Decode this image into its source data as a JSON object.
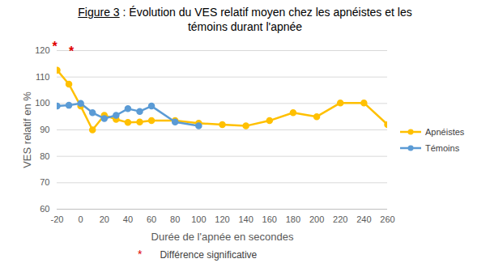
{
  "chart_data": {
    "type": "line",
    "title": "Figure 3 : Évolution du VES relatif moyen chez les apnéistes et les témoins durant l'apnée",
    "x_label": "Durée de l'apnée en secondes",
    "y_label": "VES relatif en %",
    "x": [
      -20,
      -10,
      0,
      10,
      20,
      30,
      40,
      50,
      60,
      80,
      100,
      120,
      140,
      160,
      180,
      200,
      220,
      240,
      260
    ],
    "series": [
      {
        "name": "Apnéistes",
        "color": "#FFC000",
        "marker": "circle",
        "line_style": "solid",
        "values": [
          112.6,
          107.3,
          99,
          90,
          95.5,
          94,
          92.8,
          93,
          93.5,
          93.5,
          92.5,
          92,
          91.5,
          93.5,
          96.5,
          95,
          100.2,
          100.2,
          92
        ]
      },
      {
        "name": "Témoins",
        "color": "#5B9BD5",
        "marker": "circle",
        "line_style": "solid",
        "values": [
          99,
          99.3,
          100,
          96.5,
          94.3,
          95.5,
          98,
          97,
          99,
          93,
          91.5,
          null,
          null,
          null,
          null,
          null,
          null,
          null,
          null
        ]
      }
    ],
    "xlim": [
      -20,
      260
    ],
    "xticks": [
      -20,
      0,
      20,
      40,
      60,
      80,
      100,
      120,
      140,
      160,
      180,
      200,
      220,
      240,
      260
    ],
    "ylim": [
      60,
      120
    ],
    "yticks": [
      60,
      70,
      80,
      90,
      100,
      110,
      120
    ],
    "grid": true,
    "legend": "right",
    "annotations": [
      {
        "text": "*",
        "x": -22,
        "y": 121.5,
        "color": "#E00000"
      },
      {
        "text": "*",
        "x": -8,
        "y": 119.5,
        "color": "#E00000"
      }
    ],
    "footnote": {
      "symbol": "*",
      "text": "Différence significative",
      "color": "#E00000"
    }
  }
}
